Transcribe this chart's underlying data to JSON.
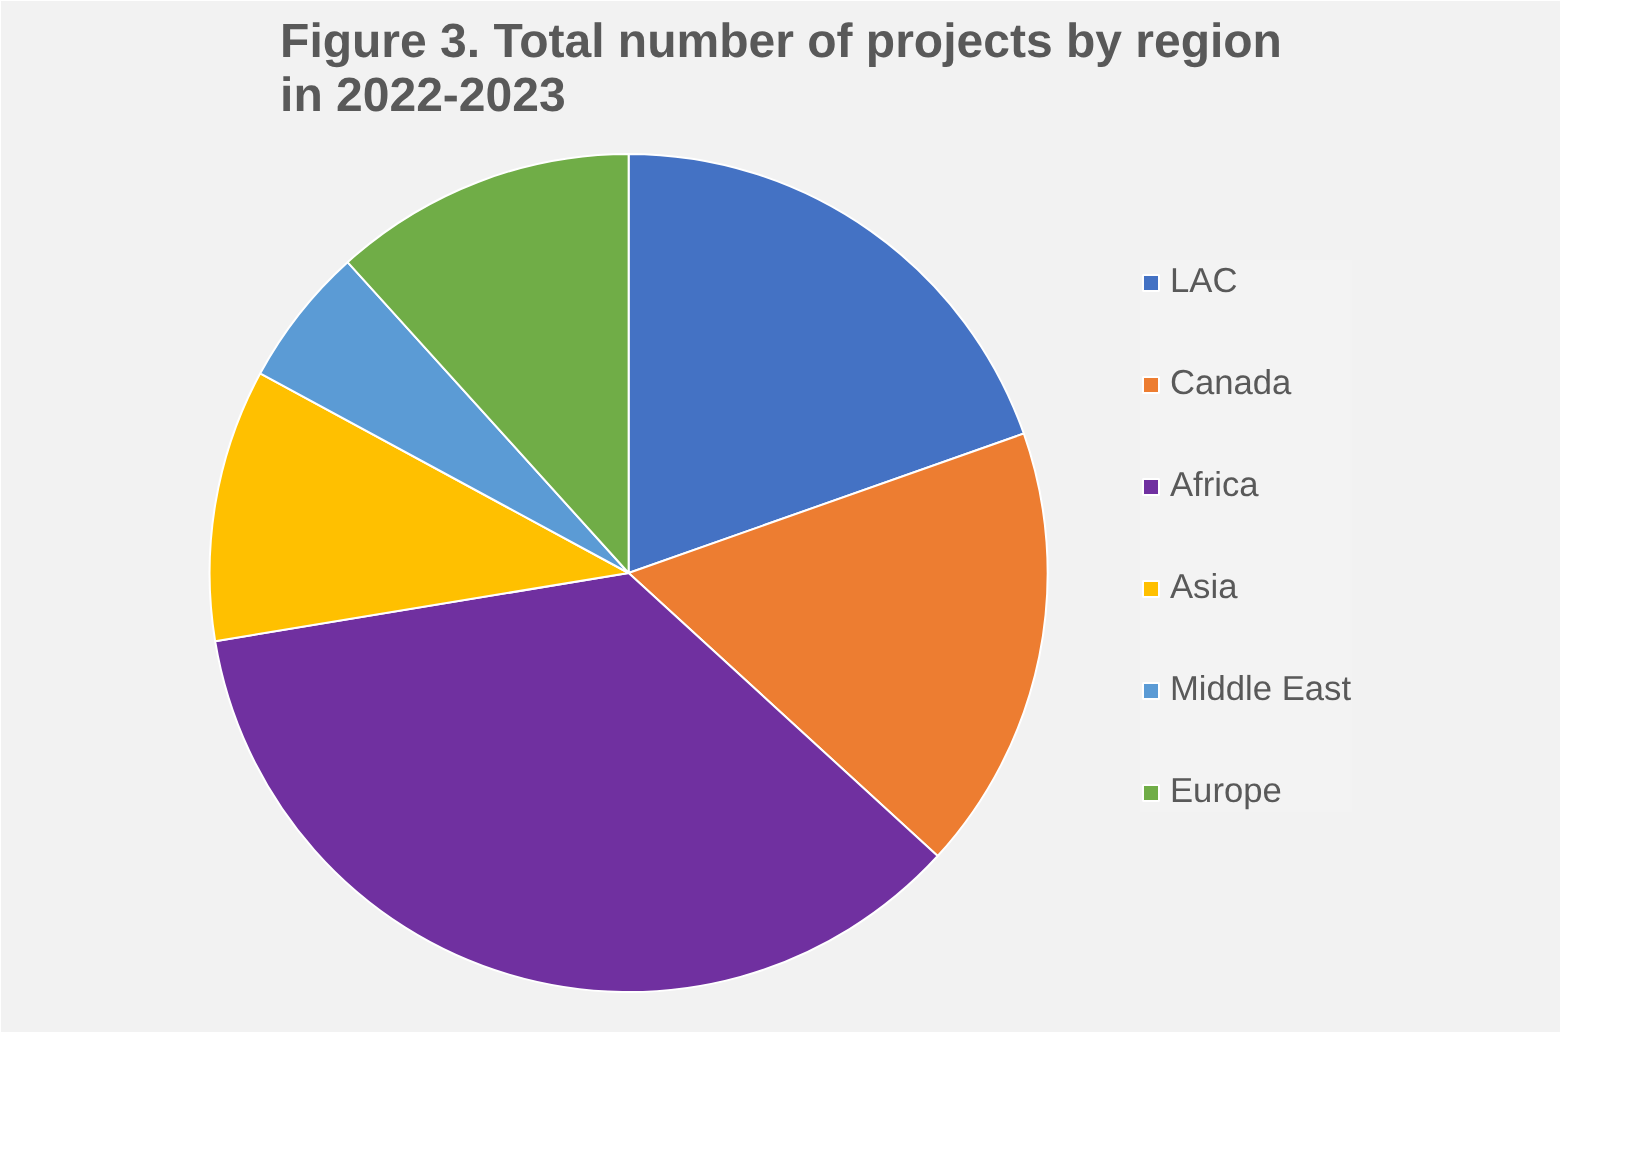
{
  "chart_data": {
    "type": "pie",
    "title": "Figure 3. Total number of projects by region in 2022-2023",
    "categories": [
      "LAC",
      "Canada",
      "Africa",
      "Asia",
      "Middle East",
      "Europe"
    ],
    "values": [
      19.6,
      17.2,
      35.6,
      10.5,
      5.4,
      11.7
    ],
    "colors": [
      "#4472c4",
      "#ed7d31",
      "#7030a0",
      "#ffc000",
      "#5b9bd5",
      "#70ad47"
    ],
    "legend": "right"
  }
}
